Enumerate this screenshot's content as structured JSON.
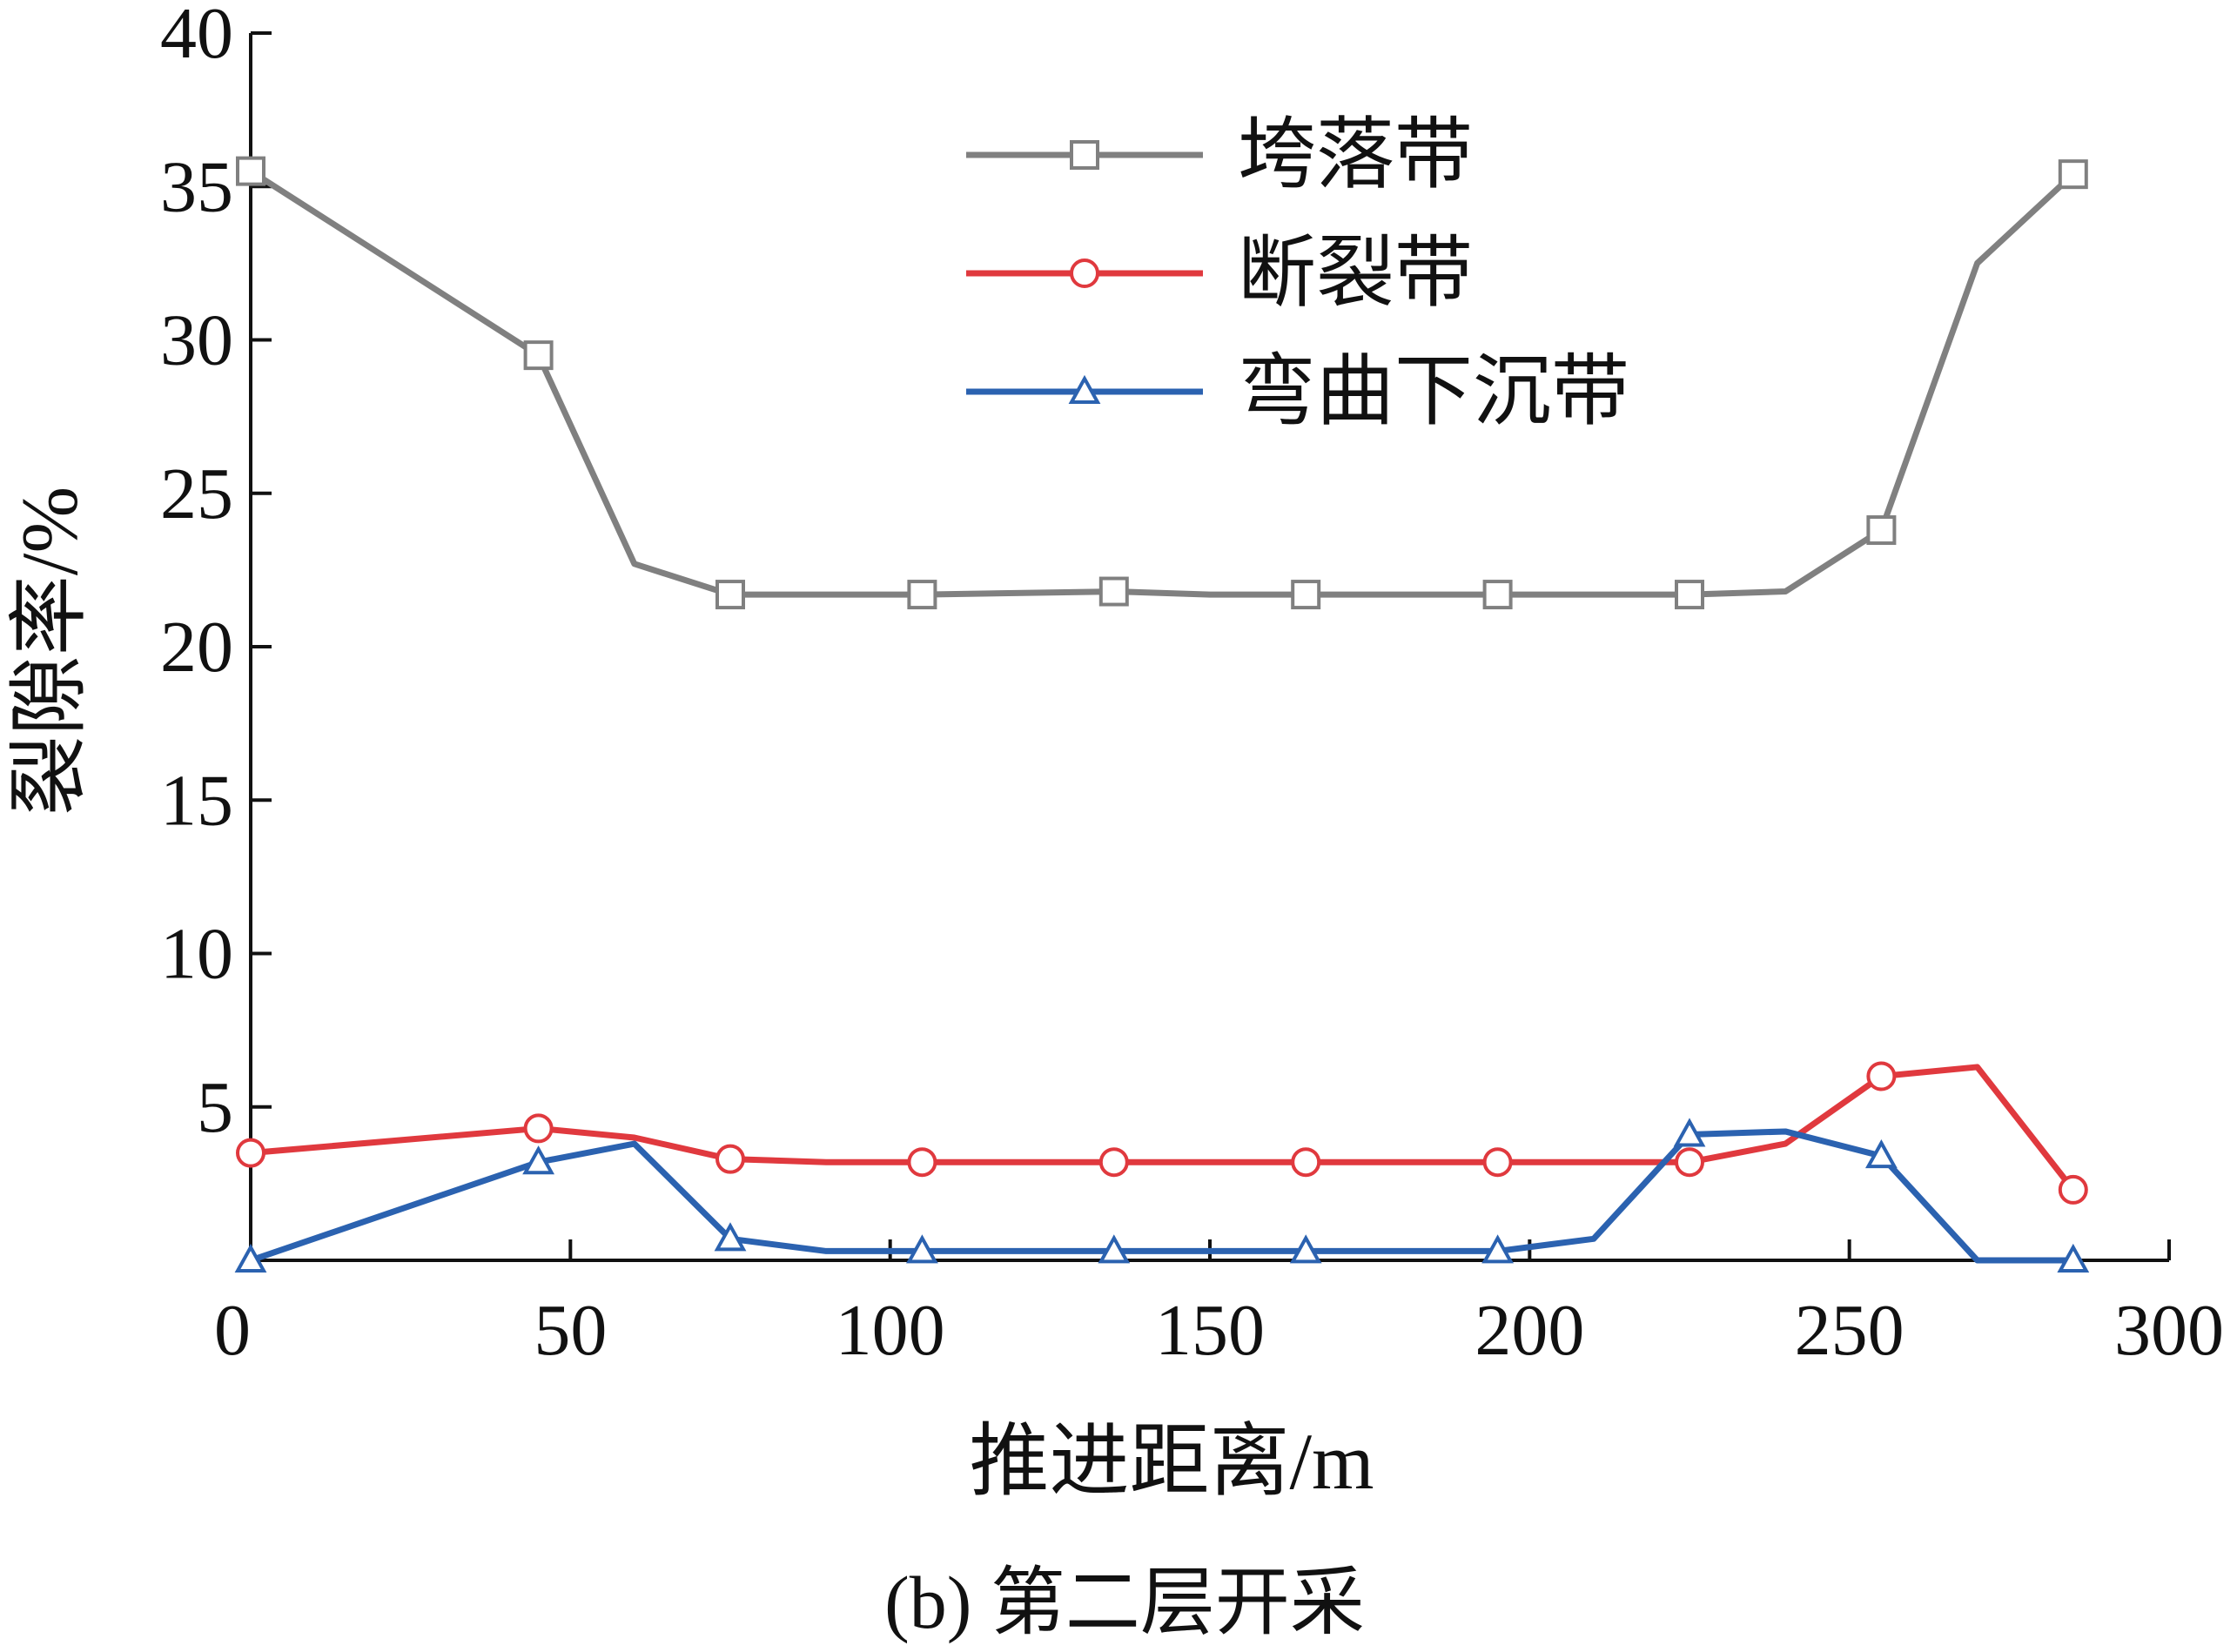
{
  "chart_data": {
    "type": "line",
    "title": "",
    "caption": "(b) 第二层开采",
    "xlabel": "推进距离/m",
    "ylabel": "裂隙率/%",
    "xlim": [
      0,
      300
    ],
    "ylim": [
      0,
      40
    ],
    "xticks": [
      0,
      50,
      100,
      150,
      200,
      250,
      300
    ],
    "yticks": [
      5,
      10,
      15,
      20,
      25,
      30,
      35,
      40
    ],
    "grid": false,
    "legend_position": "top-center",
    "series": [
      {
        "name": "垮落带",
        "color": "#808080",
        "marker": "square",
        "x": [
          0,
          45,
          60,
          75,
          105,
          135,
          150,
          165,
          195,
          225,
          240,
          255,
          270,
          285
        ],
        "y": [
          35.5,
          29.5,
          22.7,
          21.7,
          21.7,
          21.8,
          21.7,
          21.7,
          21.7,
          21.7,
          21.8,
          23.8,
          32.5,
          35.4
        ],
        "marker_x": [
          0,
          45,
          75,
          105,
          135,
          165,
          195,
          225,
          255,
          285
        ]
      },
      {
        "name": "断裂带",
        "color": "#e0393e",
        "marker": "circle",
        "x": [
          0,
          45,
          60,
          75,
          90,
          105,
          135,
          165,
          195,
          210,
          225,
          240,
          255,
          270,
          285
        ],
        "y": [
          3.5,
          4.3,
          4.0,
          3.3,
          3.2,
          3.2,
          3.2,
          3.2,
          3.2,
          3.2,
          3.2,
          3.8,
          6.0,
          6.3,
          2.3
        ],
        "marker_x": [
          0,
          45,
          75,
          105,
          135,
          165,
          195,
          225,
          255,
          285
        ]
      },
      {
        "name": "弯曲下沉带",
        "color": "#2b62b0",
        "marker": "triangle",
        "x": [
          0,
          45,
          60,
          75,
          90,
          105,
          135,
          165,
          195,
          210,
          225,
          240,
          255,
          270,
          285
        ],
        "y": [
          0.0,
          3.2,
          3.8,
          0.7,
          0.3,
          0.3,
          0.3,
          0.3,
          0.3,
          0.7,
          4.1,
          4.2,
          3.4,
          0.0,
          0.0
        ],
        "marker_x": [
          0,
          45,
          75,
          105,
          135,
          165,
          195,
          225,
          255,
          285
        ]
      }
    ]
  }
}
